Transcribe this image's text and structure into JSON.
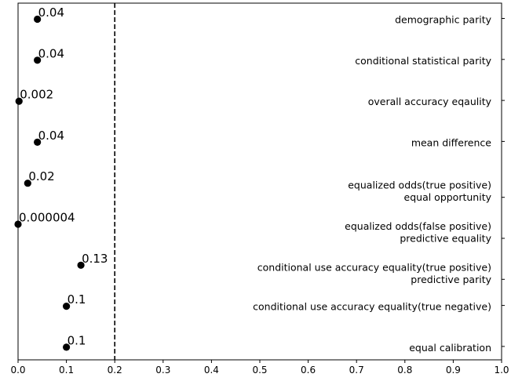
{
  "chart_data": {
    "type": "scatter",
    "xlim": [
      0,
      1.0
    ],
    "xticks": [
      "0.0",
      "0.1",
      "0.2",
      "0.3",
      "0.4",
      "0.5",
      "0.6",
      "0.7",
      "0.8",
      "0.9",
      "1.0"
    ],
    "threshold": 0.2,
    "grid": false,
    "points": [
      {
        "labels": [
          "demographic parity"
        ],
        "value": 0.04,
        "value_label": "0.04"
      },
      {
        "labels": [
          "conditional statistical parity"
        ],
        "value": 0.04,
        "value_label": "0.04"
      },
      {
        "labels": [
          "overall accuracy eqaulity"
        ],
        "value": 0.002,
        "value_label": "0.002"
      },
      {
        "labels": [
          "mean difference"
        ],
        "value": 0.04,
        "value_label": "0.04"
      },
      {
        "labels": [
          "equalized odds(true positive)",
          "equal opportunity"
        ],
        "value": 0.02,
        "value_label": "0.02"
      },
      {
        "labels": [
          "equalized odds(false positive)",
          "predictive equality"
        ],
        "value": 4e-06,
        "value_label": "0.000004"
      },
      {
        "labels": [
          "conditional use accuracy equality(true positive)",
          "predictive parity"
        ],
        "value": 0.13,
        "value_label": "0.13"
      },
      {
        "labels": [
          "conditional use accuracy equality(true negative)"
        ],
        "value": 0.1,
        "value_label": "0.1"
      },
      {
        "labels": [
          "equal calibration"
        ],
        "value": 0.1,
        "value_label": "0.1"
      }
    ]
  },
  "colors": {
    "marker": "#000000",
    "threshold_line": "#000000"
  }
}
